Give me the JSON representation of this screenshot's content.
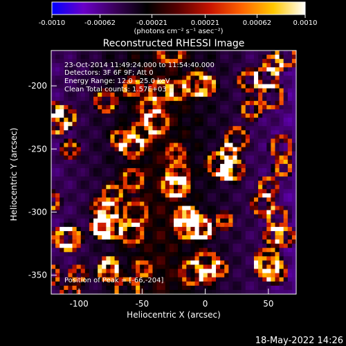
{
  "colorbar": {
    "tick_labels": [
      "-0.0010",
      "-0.00062",
      "-0.00021",
      "0.00021",
      "0.00062",
      "0.0010"
    ],
    "unit_label": "(photons cm⁻² s⁻¹ asec⁻²)",
    "range": [
      -0.001,
      0.001
    ],
    "gradient_colors": [
      "#0000ff",
      "#6a00c8",
      "#3a005a",
      "#000000",
      "#5a0000",
      "#c81400",
      "#ff6400",
      "#ffc800",
      "#ffffff"
    ]
  },
  "title": "Reconstructed RHESSI Image",
  "annotations": {
    "time_range": "23-Oct-2014 11:49:24.000 to 11:54:40.000",
    "detectors": "Detectors: 3F 6F 9F; Att 0",
    "energy_range": "Energy Range: 12.0 - 25.0 keV",
    "algorithm": "Clean     Total counts: 1.57E+03",
    "peak_position": "Position of Peak = [-66,-204]"
  },
  "x_axis": {
    "label": "Heliocentric X (arcsec)",
    "ticks": [
      "-100",
      "-50",
      "0",
      "50"
    ],
    "range": [
      -122,
      72
    ]
  },
  "y_axis": {
    "label": "Heliocentric Y (arcsec)",
    "ticks": [
      "-200",
      "-250",
      "-300",
      "-350"
    ],
    "range": [
      -365,
      -172
    ]
  },
  "timestamp": "18-May-2022 14:26"
}
